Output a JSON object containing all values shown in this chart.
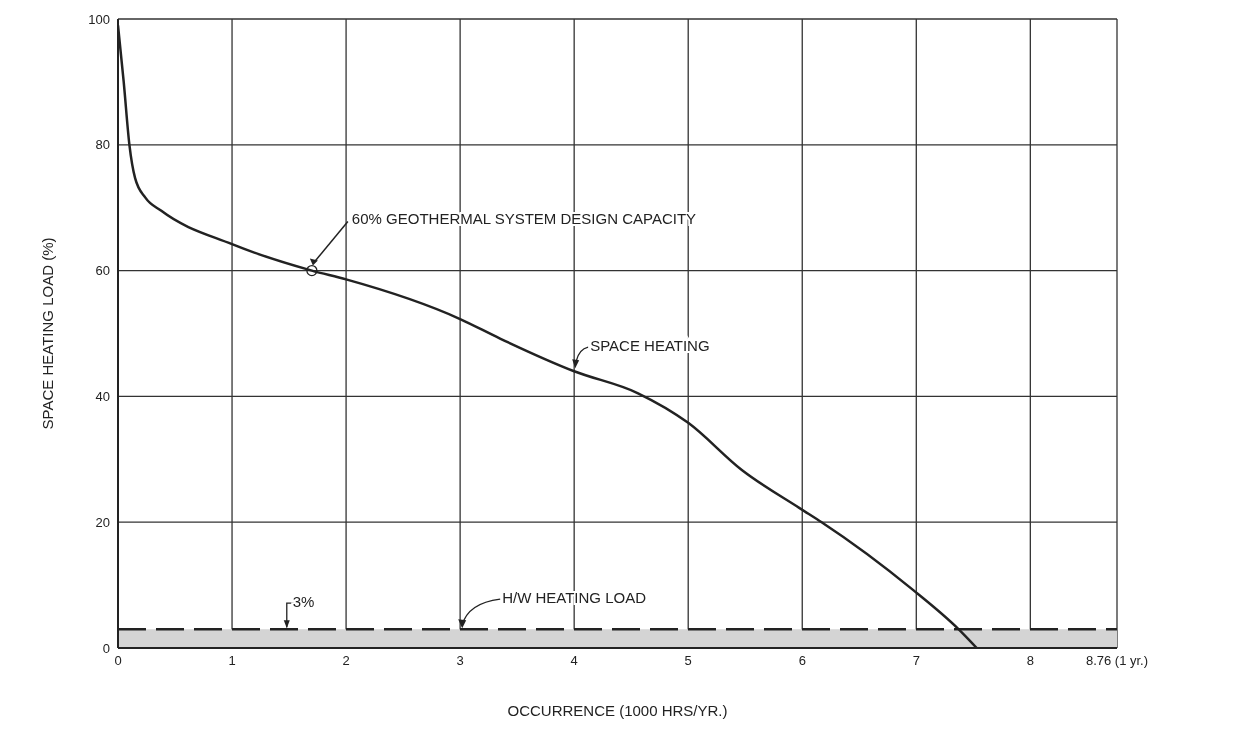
{
  "chart_data": {
    "type": "line",
    "xlabel": "OCCURRENCE (1000 HRS/YR.)",
    "ylabel": "SPACE HEATING LOAD (%)",
    "xlim": [
      0,
      8.76
    ],
    "xticks": [
      0,
      1,
      2,
      3,
      4,
      5,
      6,
      7,
      8,
      {
        "value": 8.76,
        "label": "8.76 (1 yr.)"
      }
    ],
    "ylim": [
      0,
      100
    ],
    "yticks": [
      0,
      20,
      40,
      60,
      80,
      100
    ],
    "grid": true,
    "marker": "none",
    "line_style": "solid",
    "series": [
      {
        "name": "SPACE HEATING",
        "color": "#222222",
        "x": [
          0,
          0.05,
          0.1,
          0.15,
          0.24,
          0.38,
          1,
          1.7,
          2,
          3,
          3.35,
          4,
          4.56,
          5,
          5.47,
          5.98,
          6.17,
          6.96,
          7.37,
          7.53
        ],
        "values": [
          99,
          90,
          80,
          74.7,
          71.6,
          69.5,
          64.2,
          60,
          58.6,
          52.3,
          49.2,
          44,
          40.5,
          35.8,
          28.3,
          22.2,
          20,
          9.4,
          3,
          0
        ]
      }
    ],
    "ref_lines": [
      {
        "axis": "y",
        "value": 3,
        "label": "H/W HEATING LOAD",
        "color": "#222222",
        "line_style": "dashed"
      }
    ],
    "bands": [
      {
        "axis": "y",
        "from": 0,
        "to": 3,
        "color": "#d4d4d4"
      }
    ],
    "annotations": [
      {
        "text": "60% GEOTHERMAL SYSTEM DESIGN CAPACITY",
        "x": 1.7,
        "y": 60
      },
      {
        "text": "3%",
        "x": 1.48,
        "y": 3
      }
    ]
  }
}
